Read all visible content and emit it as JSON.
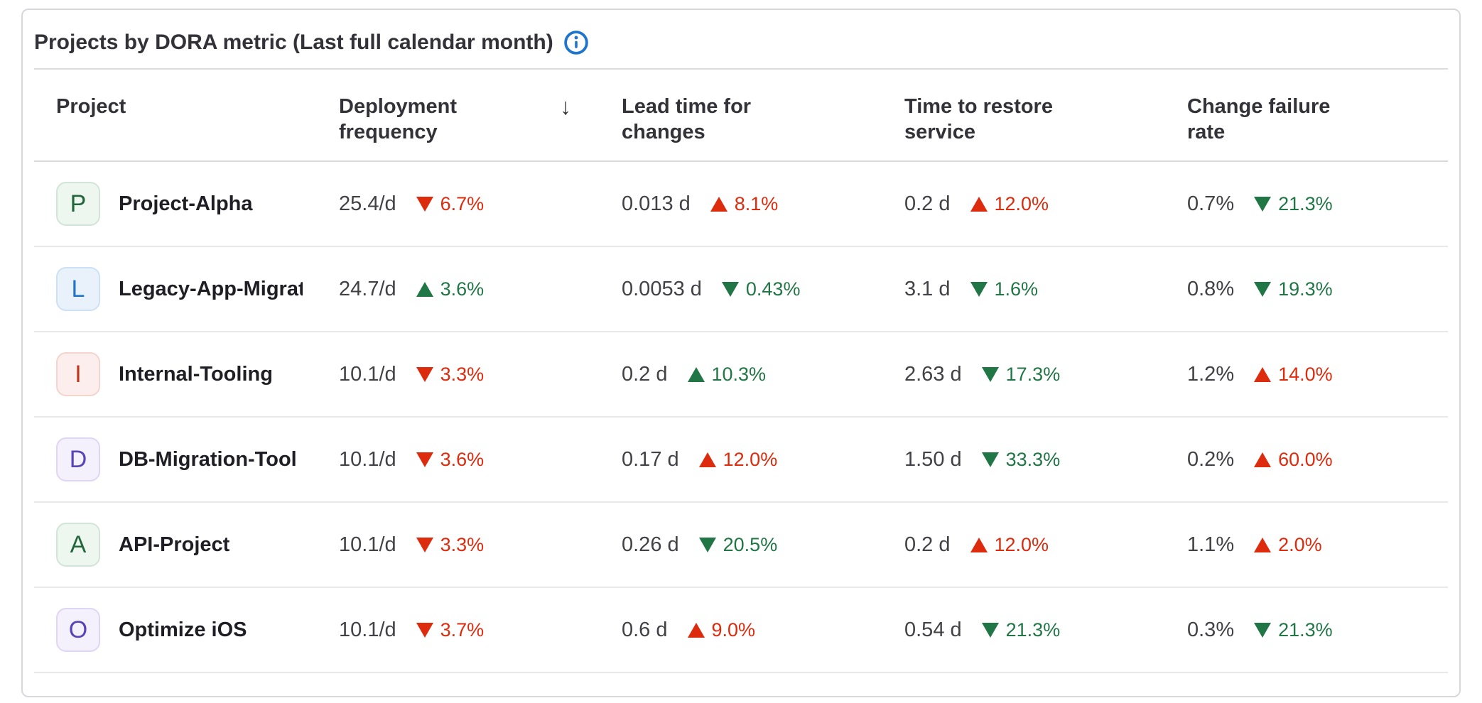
{
  "card": {
    "title": "Projects by DORA metric (Last full calendar month)",
    "info_icon": "info-circle-icon",
    "info_color": "#1f75cb"
  },
  "colors": {
    "good": "#217645",
    "bad": "#dd2b0e",
    "border": "#d8d8dc",
    "row_divider": "#e8e8ea"
  },
  "table": {
    "columns": [
      {
        "label": "Project",
        "slug": "project"
      },
      {
        "label": "Deployment frequency",
        "slug": "deployment-frequency",
        "sorted": true,
        "sort_direction": "descending",
        "sort_icon": "↓"
      },
      {
        "label": "Lead time for changes",
        "slug": "lead-time-for-changes"
      },
      {
        "label": "Time to restore service",
        "slug": "time-to-restore-service"
      },
      {
        "label": "Change failure rate",
        "slug": "change-failure-rate"
      }
    ],
    "rows": [
      {
        "project": {
          "initial": "P",
          "name": "Project-Alpha",
          "avatar_bg": "#eef6f0",
          "avatar_border": "#d2e4d8",
          "avatar_color": "#24663b"
        },
        "metrics": [
          {
            "value": "25.4/d",
            "delta": "6.7%",
            "arrow": "down",
            "trend": "bad"
          },
          {
            "value": "0.013 d",
            "delta": "8.1%",
            "arrow": "up",
            "trend": "bad"
          },
          {
            "value": "0.2 d",
            "delta": "12.0%",
            "arrow": "up",
            "trend": "bad"
          },
          {
            "value": "0.7%",
            "delta": "21.3%",
            "arrow": "down",
            "trend": "good"
          }
        ]
      },
      {
        "project": {
          "initial": "L",
          "name": "Legacy-App-Migration",
          "avatar_bg": "#e9f2fb",
          "avatar_border": "#cde0f4",
          "avatar_color": "#1f75cb"
        },
        "metrics": [
          {
            "value": "24.7/d",
            "delta": "3.6%",
            "arrow": "up",
            "trend": "good"
          },
          {
            "value": "0.0053 d",
            "delta": "0.43%",
            "arrow": "down",
            "trend": "good"
          },
          {
            "value": "3.1 d",
            "delta": "1.6%",
            "arrow": "down",
            "trend": "good"
          },
          {
            "value": "0.8%",
            "delta": "19.3%",
            "arrow": "down",
            "trend": "good"
          }
        ]
      },
      {
        "project": {
          "initial": "I",
          "name": "Internal-Tooling",
          "avatar_bg": "#fbeeec",
          "avatar_border": "#f3d4cf",
          "avatar_color": "#c0351f"
        },
        "metrics": [
          {
            "value": "10.1/d",
            "delta": "3.3%",
            "arrow": "down",
            "trend": "bad"
          },
          {
            "value": "0.2 d",
            "delta": "10.3%",
            "arrow": "up",
            "trend": "good"
          },
          {
            "value": "2.63 d",
            "delta": "17.3%",
            "arrow": "down",
            "trend": "good"
          },
          {
            "value": "1.2%",
            "delta": "14.0%",
            "arrow": "up",
            "trend": "bad"
          }
        ]
      },
      {
        "project": {
          "initial": "D",
          "name": "DB-Migration-Tool",
          "avatar_bg": "#f4f0fc",
          "avatar_border": "#e0d5f5",
          "avatar_color": "#5943b6"
        },
        "metrics": [
          {
            "value": "10.1/d",
            "delta": "3.6%",
            "arrow": "down",
            "trend": "bad"
          },
          {
            "value": "0.17 d",
            "delta": "12.0%",
            "arrow": "up",
            "trend": "bad"
          },
          {
            "value": "1.50 d",
            "delta": "33.3%",
            "arrow": "down",
            "trend": "good"
          },
          {
            "value": "0.2%",
            "delta": "60.0%",
            "arrow": "up",
            "trend": "bad"
          }
        ]
      },
      {
        "project": {
          "initial": "A",
          "name": "API-Project",
          "avatar_bg": "#eef6f0",
          "avatar_border": "#d2e4d8",
          "avatar_color": "#24663b"
        },
        "metrics": [
          {
            "value": "10.1/d",
            "delta": "3.3%",
            "arrow": "down",
            "trend": "bad"
          },
          {
            "value": "0.26 d",
            "delta": "20.5%",
            "arrow": "down",
            "trend": "good"
          },
          {
            "value": "0.2 d",
            "delta": "12.0%",
            "arrow": "up",
            "trend": "bad"
          },
          {
            "value": "1.1%",
            "delta": "2.0%",
            "arrow": "up",
            "trend": "bad"
          }
        ]
      },
      {
        "project": {
          "initial": "O",
          "name": "Optimize iOS",
          "avatar_bg": "#f4f0fc",
          "avatar_border": "#e0d5f5",
          "avatar_color": "#5943b6"
        },
        "metrics": [
          {
            "value": "10.1/d",
            "delta": "3.7%",
            "arrow": "down",
            "trend": "bad"
          },
          {
            "value": "0.6 d",
            "delta": "9.0%",
            "arrow": "up",
            "trend": "bad"
          },
          {
            "value": "0.54 d",
            "delta": "21.3%",
            "arrow": "down",
            "trend": "good"
          },
          {
            "value": "0.3%",
            "delta": "21.3%",
            "arrow": "down",
            "trend": "good"
          }
        ]
      }
    ]
  }
}
